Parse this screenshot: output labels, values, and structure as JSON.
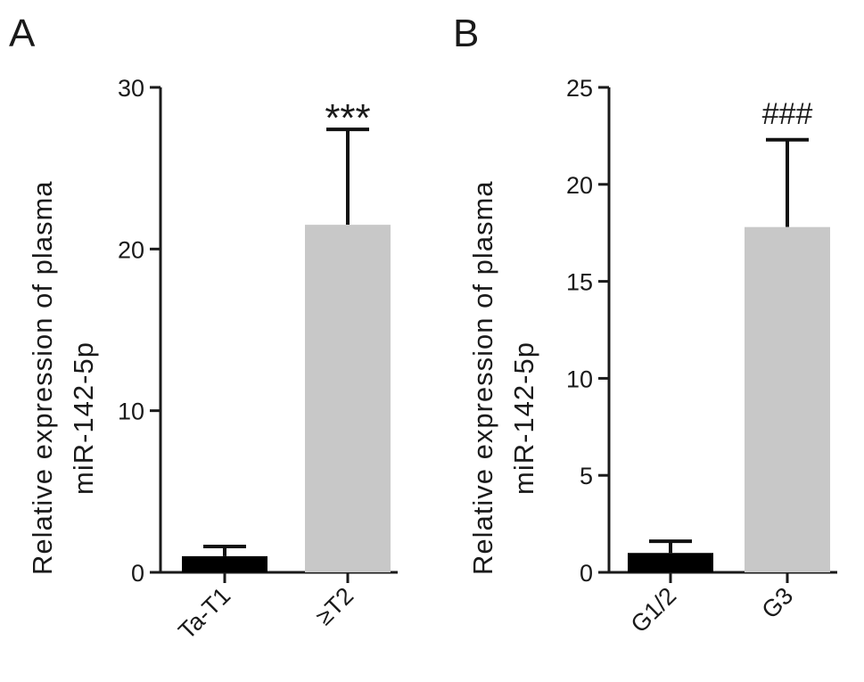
{
  "chart_data": [
    {
      "type": "bar",
      "panel_label": "A",
      "ylabel_lines": [
        "Relative expression of plasma",
        "miR-142-5p"
      ],
      "xlabel": "",
      "ylim": [
        0,
        30
      ],
      "yticks": [
        0,
        10,
        20,
        30
      ],
      "categories": [
        "Ta-T1",
        "≥T2"
      ],
      "values": [
        1.0,
        21.5
      ],
      "errors": [
        0.6,
        5.9
      ],
      "bar_colors": [
        "#000000",
        "#c8c8c8"
      ],
      "annotations": [
        {
          "category": "≥T2",
          "text": "***"
        }
      ],
      "grid": false
    },
    {
      "type": "bar",
      "panel_label": "B",
      "ylabel_lines": [
        "Relative expression of plasma",
        "miR-142-5p"
      ],
      "xlabel": "",
      "ylim": [
        0,
        25
      ],
      "yticks": [
        0,
        5,
        10,
        15,
        20,
        25
      ],
      "categories": [
        "G1/2",
        "G3"
      ],
      "values": [
        1.0,
        17.8
      ],
      "errors": [
        0.6,
        4.5
      ],
      "bar_colors": [
        "#000000",
        "#c8c8c8"
      ],
      "annotations": [
        {
          "category": "G3",
          "text": "###"
        }
      ],
      "grid": false
    }
  ]
}
